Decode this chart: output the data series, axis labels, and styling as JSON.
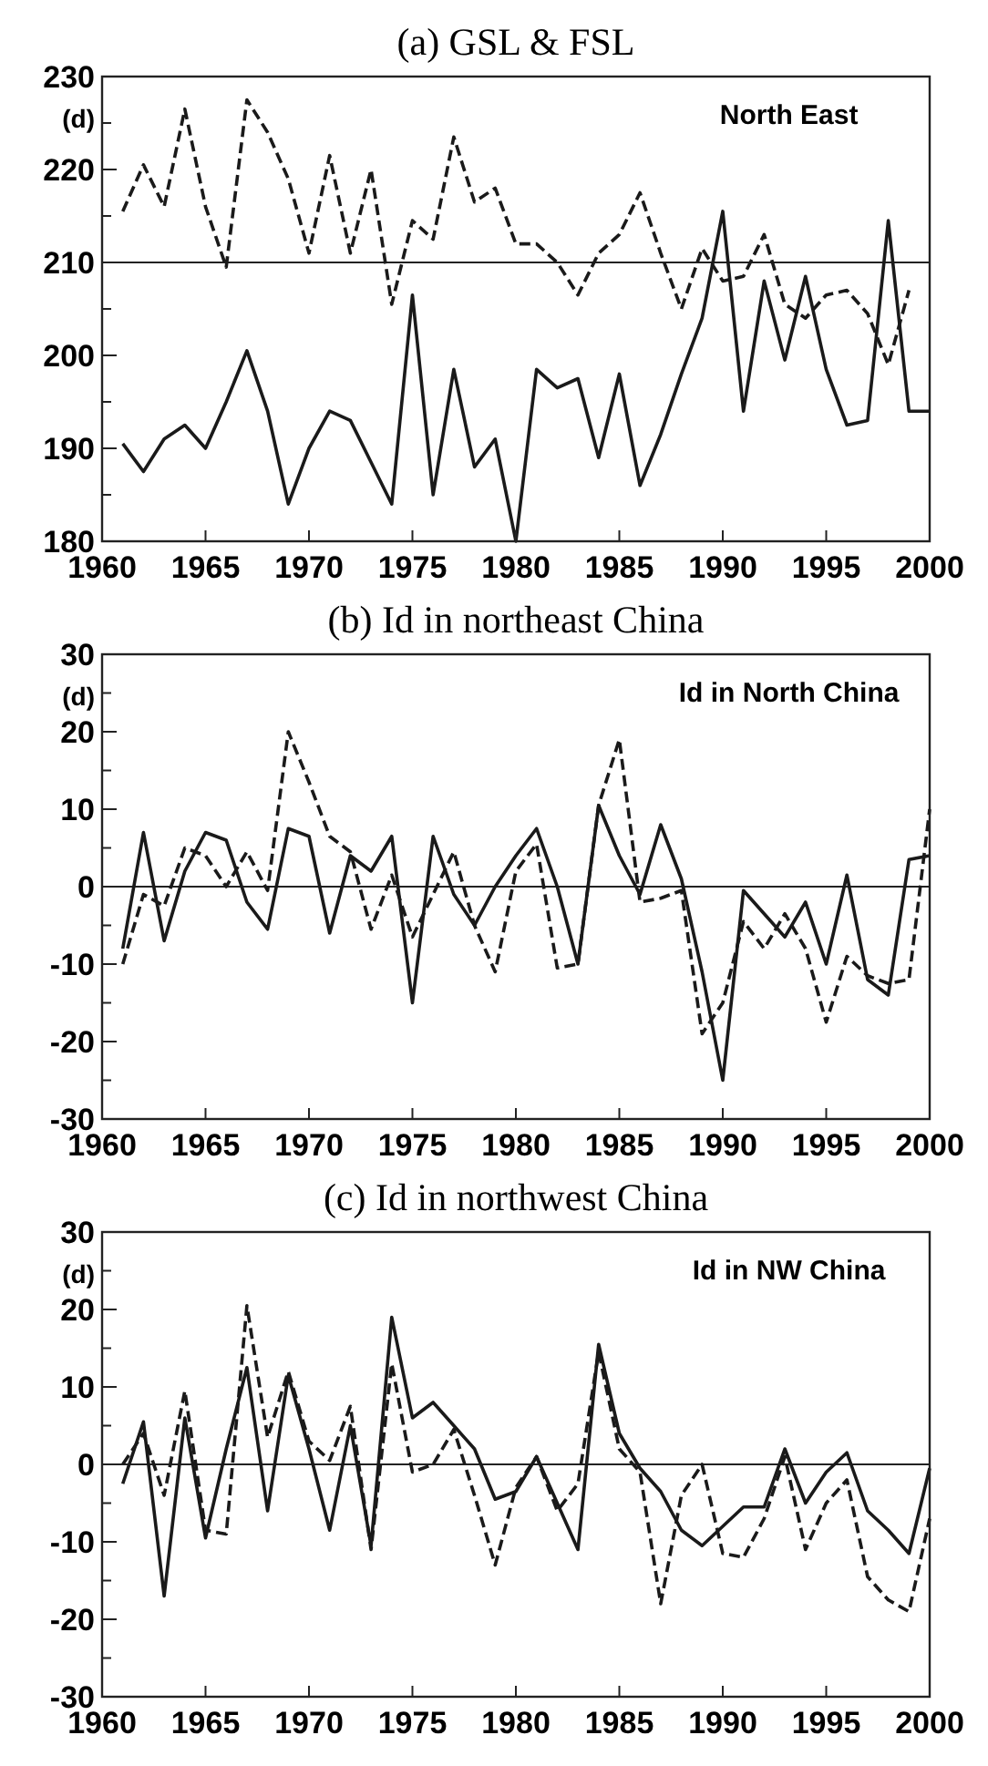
{
  "chart_data": [
    {
      "type": "line",
      "title": "(a) GSL & FSL",
      "ylabel": "(d)",
      "annotations": [
        "North East"
      ],
      "xlim": [
        1960,
        2000
      ],
      "xticks": [
        1960,
        1965,
        1970,
        1975,
        1980,
        1985,
        1990,
        1995,
        2000
      ],
      "ylim": [
        180,
        230
      ],
      "yticks": [
        180,
        {
          "value": 185,
          "label": null
        },
        190,
        {
          "value": 195,
          "label": null
        },
        200,
        {
          "value": 205,
          "label": null
        },
        210,
        {
          "value": 215,
          "label": null
        },
        220,
        {
          "value": 225,
          "label": null
        },
        230
      ],
      "grid": false,
      "marker": "none",
      "ref_lines": [
        {
          "axis": "y",
          "value": 210,
          "color": "#222222"
        }
      ],
      "x": [
        1961,
        1962,
        1963,
        1964,
        1965,
        1966,
        1967,
        1968,
        1969,
        1970,
        1971,
        1972,
        1973,
        1974,
        1975,
        1976,
        1977,
        1978,
        1979,
        1980,
        1981,
        1982,
        1983,
        1984,
        1985,
        1986,
        1987,
        1988,
        1989,
        1990,
        1991,
        1992,
        1993,
        1994,
        1995,
        1996,
        1997,
        1998,
        1999,
        2000
      ],
      "series": [
        {
          "color": "#1a1a1a",
          "line_style": "solid",
          "values": [
            190.5,
            187.5,
            191,
            192.5,
            190,
            195,
            200.5,
            194,
            184,
            190,
            194,
            193,
            188.5,
            184,
            206.5,
            185,
            198.5,
            188,
            191,
            180,
            198.5,
            196.5,
            197.5,
            189,
            198,
            186,
            191.5,
            198,
            204,
            215.5,
            194,
            208,
            199.5,
            208.5,
            198.5,
            192.5,
            193,
            214.5,
            194,
            194
          ]
        },
        {
          "color": "#1a1a1a",
          "line_style": "dashed",
          "values": [
            215.5,
            220.5,
            216,
            226.5,
            216,
            209.5,
            227.5,
            224,
            219,
            211,
            221.5,
            211,
            220,
            205.5,
            214.5,
            212.5,
            223.5,
            216.5,
            218,
            212,
            212,
            210,
            206.5,
            211,
            213,
            217.5,
            211,
            205,
            211.5,
            208,
            208.5,
            213,
            205.5,
            204,
            206.5,
            207,
            204.5,
            199,
            207,
            null
          ]
        }
      ]
    },
    {
      "type": "line",
      "title": "(b) Id in northeast China",
      "ylabel": "(d)",
      "annotations": [
        "Id in North China"
      ],
      "xlim": [
        1960,
        2000
      ],
      "xticks": [
        1960,
        1965,
        1970,
        1975,
        1980,
        1985,
        1990,
        1995,
        2000
      ],
      "ylim": [
        -30,
        30
      ],
      "yticks": [
        -30,
        {
          "value": -25,
          "label": null
        },
        -20,
        {
          "value": -15,
          "label": null
        },
        -10,
        {
          "value": -5,
          "label": null
        },
        0,
        {
          "value": 5,
          "label": null
        },
        10,
        {
          "value": 15,
          "label": null
        },
        20,
        {
          "value": 25,
          "label": null
        },
        30
      ],
      "grid": false,
      "marker": "none",
      "ref_lines": [
        {
          "axis": "y",
          "value": 0,
          "color": "#222222"
        }
      ],
      "x": [
        1961,
        1962,
        1963,
        1964,
        1965,
        1966,
        1967,
        1968,
        1969,
        1970,
        1971,
        1972,
        1973,
        1974,
        1975,
        1976,
        1977,
        1978,
        1979,
        1980,
        1981,
        1982,
        1983,
        1984,
        1985,
        1986,
        1987,
        1988,
        1989,
        1990,
        1991,
        1992,
        1993,
        1994,
        1995,
        1996,
        1997,
        1998,
        1999,
        2000
      ],
      "series": [
        {
          "color": "#1a1a1a",
          "line_style": "solid",
          "values": [
            -8,
            7,
            -7,
            2,
            7,
            6,
            -2,
            -5.5,
            7.5,
            6.5,
            -6,
            4,
            2,
            6.5,
            -15,
            6.5,
            -1,
            -5,
            0,
            4,
            7.5,
            0,
            -10,
            10.5,
            4,
            -1,
            8,
            1,
            -11,
            -25,
            -0.5,
            -3.5,
            -6.5,
            -2,
            -10,
            1.5,
            -12,
            -14,
            3.5,
            4
          ]
        },
        {
          "color": "#1a1a1a",
          "line_style": "dashed",
          "values": [
            -10,
            -1,
            -2.5,
            5,
            4,
            0,
            4.5,
            -0.5,
            20,
            13.5,
            6.5,
            4.5,
            -5.5,
            1.5,
            -6.5,
            -1,
            4.5,
            -5,
            -11,
            2,
            5.5,
            -10.5,
            -10,
            10.5,
            19,
            -2,
            -1.5,
            -0.5,
            -19,
            -15,
            -4.5,
            -8,
            -3.5,
            -8,
            -17.5,
            -9,
            -11.5,
            -12.5,
            -12,
            10
          ]
        }
      ]
    },
    {
      "type": "line",
      "title": "(c) Id in northwest China",
      "ylabel": "(d)",
      "annotations": [
        "Id in NW China"
      ],
      "xlim": [
        1960,
        2000
      ],
      "xticks": [
        1960,
        1965,
        1970,
        1975,
        1980,
        1985,
        1990,
        1995,
        2000
      ],
      "ylim": [
        -30,
        30
      ],
      "yticks": [
        -30,
        {
          "value": -25,
          "label": null
        },
        -20,
        {
          "value": -15,
          "label": null
        },
        -10,
        {
          "value": -5,
          "label": null
        },
        0,
        {
          "value": 5,
          "label": null
        },
        10,
        {
          "value": 15,
          "label": null
        },
        20,
        {
          "value": 25,
          "label": null
        },
        30
      ],
      "grid": false,
      "marker": "none",
      "ref_lines": [
        {
          "axis": "y",
          "value": 0,
          "color": "#222222"
        }
      ],
      "x": [
        1961,
        1962,
        1963,
        1964,
        1965,
        1966,
        1967,
        1968,
        1969,
        1970,
        1971,
        1972,
        1973,
        1974,
        1975,
        1976,
        1977,
        1978,
        1979,
        1980,
        1981,
        1982,
        1983,
        1984,
        1985,
        1986,
        1987,
        1988,
        1989,
        1990,
        1991,
        1992,
        1993,
        1994,
        1995,
        1996,
        1997,
        1998,
        1999,
        2000
      ],
      "series": [
        {
          "color": "#1a1a1a",
          "line_style": "solid",
          "values": [
            -2.5,
            5.5,
            -17,
            6,
            -9.5,
            2,
            12.5,
            -6,
            11.5,
            2,
            -8.5,
            5,
            -10.5,
            19,
            6,
            8,
            5,
            2,
            -4.5,
            -3.5,
            1,
            -5,
            -11,
            15.5,
            4,
            -0.5,
            -3.5,
            -8.5,
            -10.5,
            -8,
            -5.5,
            -5.5,
            2,
            -5,
            -1,
            1.5,
            -6,
            -8.5,
            -11.5,
            -0.5
          ]
        },
        {
          "color": "#1a1a1a",
          "line_style": "dashed",
          "values": [
            0,
            4,
            -4,
            9.5,
            -8.5,
            -9,
            20.5,
            3.5,
            12,
            3,
            0.5,
            7.5,
            -11,
            13,
            -1,
            0,
            4.5,
            -4,
            -13,
            -3,
            1,
            -6,
            -2.5,
            14.5,
            2,
            -1,
            -18,
            -4,
            0,
            -11.5,
            -12,
            -7,
            1,
            -11,
            -5,
            -2,
            -14.5,
            -17.5,
            -19,
            -7
          ]
        }
      ]
    }
  ]
}
